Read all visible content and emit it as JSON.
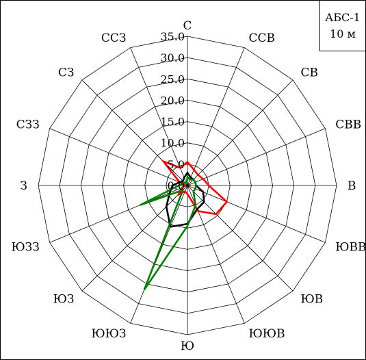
{
  "chart_data": {
    "type": "radar",
    "title": "",
    "legend_box": {
      "line1": "АБС-1",
      "line2": "10 м"
    },
    "directions": [
      "С",
      "ССВ",
      "СВ",
      "СВВ",
      "В",
      "ЮВВ",
      "ЮВ",
      "ЮЮВ",
      "Ю",
      "ЮЮЗ",
      "ЮЗ",
      "ЮЗЗ",
      "З",
      "СЗЗ",
      "СЗ",
      "ССЗ"
    ],
    "r_ticks": [
      "0.0",
      "5.0",
      "10.0",
      "15.0",
      "20.0",
      "25.0",
      "30.0",
      "35.0"
    ],
    "r_range": [
      0,
      35
    ],
    "grid": true,
    "series": [
      {
        "color": "#ff0000",
        "values": [
          5.5,
          4.0,
          3.5,
          4.0,
          5.0,
          10.0,
          9.5,
          6.5,
          2.0,
          1.5,
          3.0,
          1.5,
          0.5,
          2.0,
          8.0,
          4.5
        ]
      },
      {
        "color": "#000000",
        "values": [
          3.0,
          2.0,
          2.0,
          2.0,
          2.0,
          4.0,
          5.5,
          6.0,
          9.0,
          10.5,
          7.0,
          4.5,
          3.5,
          2.0,
          1.5,
          2.0
        ]
      },
      {
        "color": "#008000",
        "values": [
          2.0,
          1.5,
          2.0,
          2.0,
          2.0,
          2.0,
          2.0,
          5.0,
          9.5,
          26.5,
          1.5,
          12.0,
          2.0,
          1.0,
          1.0,
          0.5
        ]
      }
    ]
  }
}
